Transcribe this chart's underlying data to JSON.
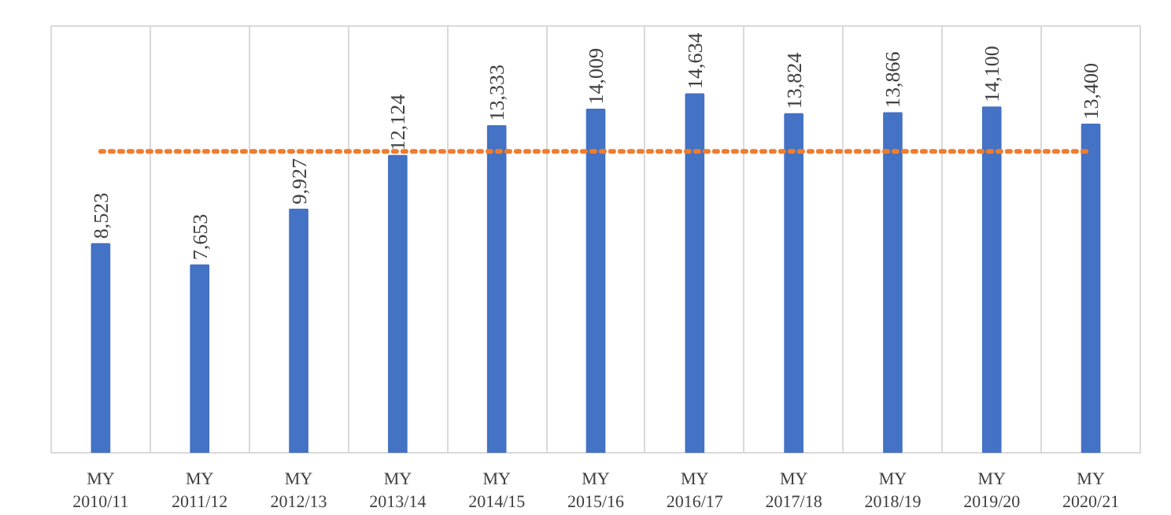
{
  "chart_data": {
    "type": "bar",
    "categories": [
      "MY\n2010/11",
      "MY\n2011/12",
      "MY\n2012/13",
      "MY\n2013/14",
      "MY\n2014/15",
      "MY\n2015/16",
      "MY\n2016/17",
      "MY\n2017/18",
      "MY\n2018/19",
      "MY\n2019/20",
      "MY\n2020/21"
    ],
    "values": [
      8523,
      7653,
      9927,
      12124,
      13333,
      14009,
      14634,
      13824,
      13866,
      14100,
      13400
    ],
    "color": "#4472c4",
    "data_labels": true,
    "value_labels": [
      "8,523",
      "7,653",
      "9,927",
      "12,124",
      "13,333",
      "14,009",
      "14,634",
      "13,824",
      "13,866",
      "14,100",
      "13,400"
    ],
    "ref_lines": [
      {
        "axis": "y",
        "value": 12300,
        "label": null,
        "color": "#ed7d31",
        "line_style": "dotted"
      }
    ],
    "grid": "x",
    "tick_labels": "x"
  }
}
